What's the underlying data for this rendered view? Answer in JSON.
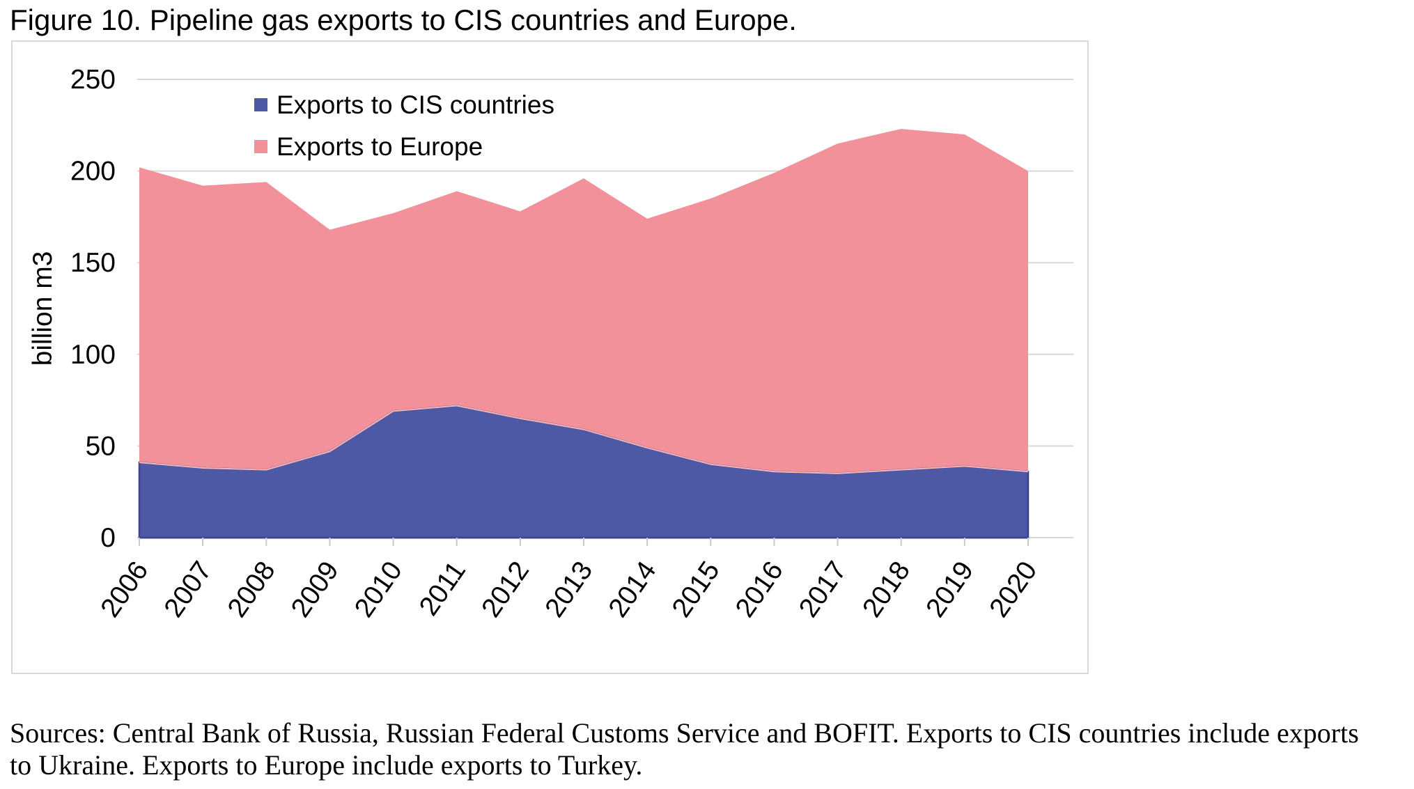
{
  "figure": {
    "title": "Figure 10. Pipeline gas exports to CIS countries and Europe.",
    "source_line1": "Sources: Central Bank of Russia, Russian Federal Customs Service and BOFIT. Exports to CIS countries include exports",
    "source_line2": "to Ukraine. Exports to Europe include exports to Turkey."
  },
  "chart_data": {
    "type": "area",
    "stacked": true,
    "title": "",
    "xlabel": "",
    "ylabel": "billion m3",
    "ylim": [
      0,
      250
    ],
    "yticks": [
      0,
      50,
      100,
      150,
      200,
      250
    ],
    "grid": "horizontal",
    "legend_position": "top-left-inside",
    "categories": [
      "2006",
      "2007",
      "2008",
      "2009",
      "2010",
      "2011",
      "2012",
      "2013",
      "2014",
      "2015",
      "2016",
      "2017",
      "2018",
      "2019",
      "2020"
    ],
    "series": [
      {
        "name": "Exports to CIS countries",
        "color": "#4E59A6",
        "values": [
          41,
          38,
          37,
          47,
          69,
          72,
          65,
          59,
          49,
          40,
          36,
          35,
          37,
          39,
          36
        ]
      },
      {
        "name": "Exports to Europe",
        "color": "#F2919A",
        "values": [
          161,
          154,
          157,
          121,
          108,
          117,
          113,
          137,
          125,
          145,
          163,
          180,
          186,
          181,
          164
        ]
      }
    ],
    "stacked_totals": [
      202,
      192,
      194,
      168,
      177,
      189,
      178,
      196,
      174,
      185,
      199,
      215,
      223,
      220,
      200
    ],
    "colors": {
      "grid": "#D9D9D9",
      "chart_border": "#D9D9D9",
      "tick": "#C9C9C9",
      "cis_area": "#4E59A6",
      "cis_border": "#39428E",
      "europe_area": "#F2919A",
      "series_boundary": "#F5B6BC",
      "baseline": "#3D4692",
      "text": "#000000"
    }
  }
}
